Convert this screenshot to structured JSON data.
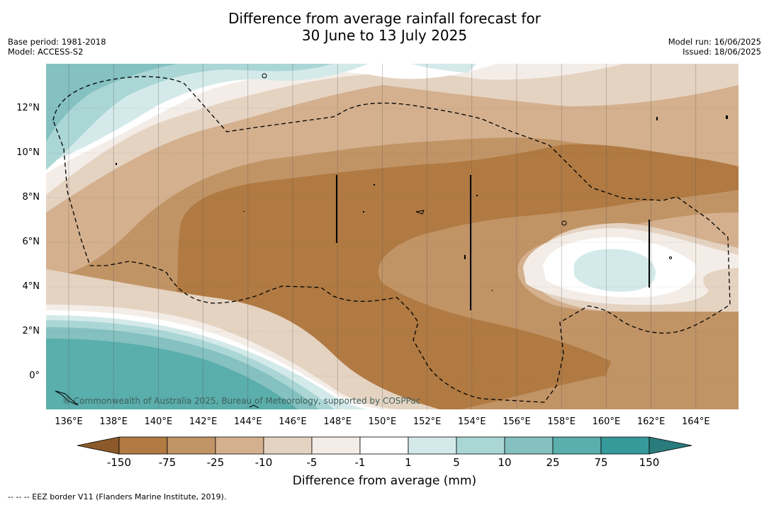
{
  "title": {
    "line1": "Difference from average rainfall forecast for",
    "line2": "30 June to 13 July 2025"
  },
  "meta_left": {
    "base_period": "Base period: 1981-2018",
    "model": "Model: ACCESS-S2"
  },
  "meta_right": {
    "model_run": "Model run: 16/06/2025",
    "issued": "Issued: 18/06/2025"
  },
  "map": {
    "lat_labels": [
      "12°N",
      "10°N",
      "8°N",
      "6°N",
      "4°N",
      "2°N",
      "0°"
    ],
    "lon_labels": [
      "136°E",
      "138°E",
      "140°E",
      "142°E",
      "144°E",
      "146°E",
      "148°E",
      "150°E",
      "152°E",
      "154°E",
      "156°E",
      "158°E",
      "160°E",
      "162°E",
      "164°E"
    ],
    "copyright": "© Commonwealth of Australia 2025, Bureau of Meteorology, supported by COSPPac"
  },
  "colorbar": {
    "labels": [
      "-150",
      "-75",
      "-25",
      "-10",
      "-5",
      "-1",
      "1",
      "5",
      "10",
      "25",
      "75",
      "150"
    ],
    "colors": [
      "#8c5a2a",
      "#b07a42",
      "#c19466",
      "#d4b08e",
      "#e5d3c2",
      "#f4ede7",
      "#ffffff",
      "#d4eaea",
      "#abd6d6",
      "#84c1c0",
      "#5aaeac",
      "#36999a",
      "#2a7b7c"
    ],
    "title": "Difference from average (mm)"
  },
  "footnote": "--  --  -- EEZ border V11 (Flanders Marine Institute, 2019)."
}
